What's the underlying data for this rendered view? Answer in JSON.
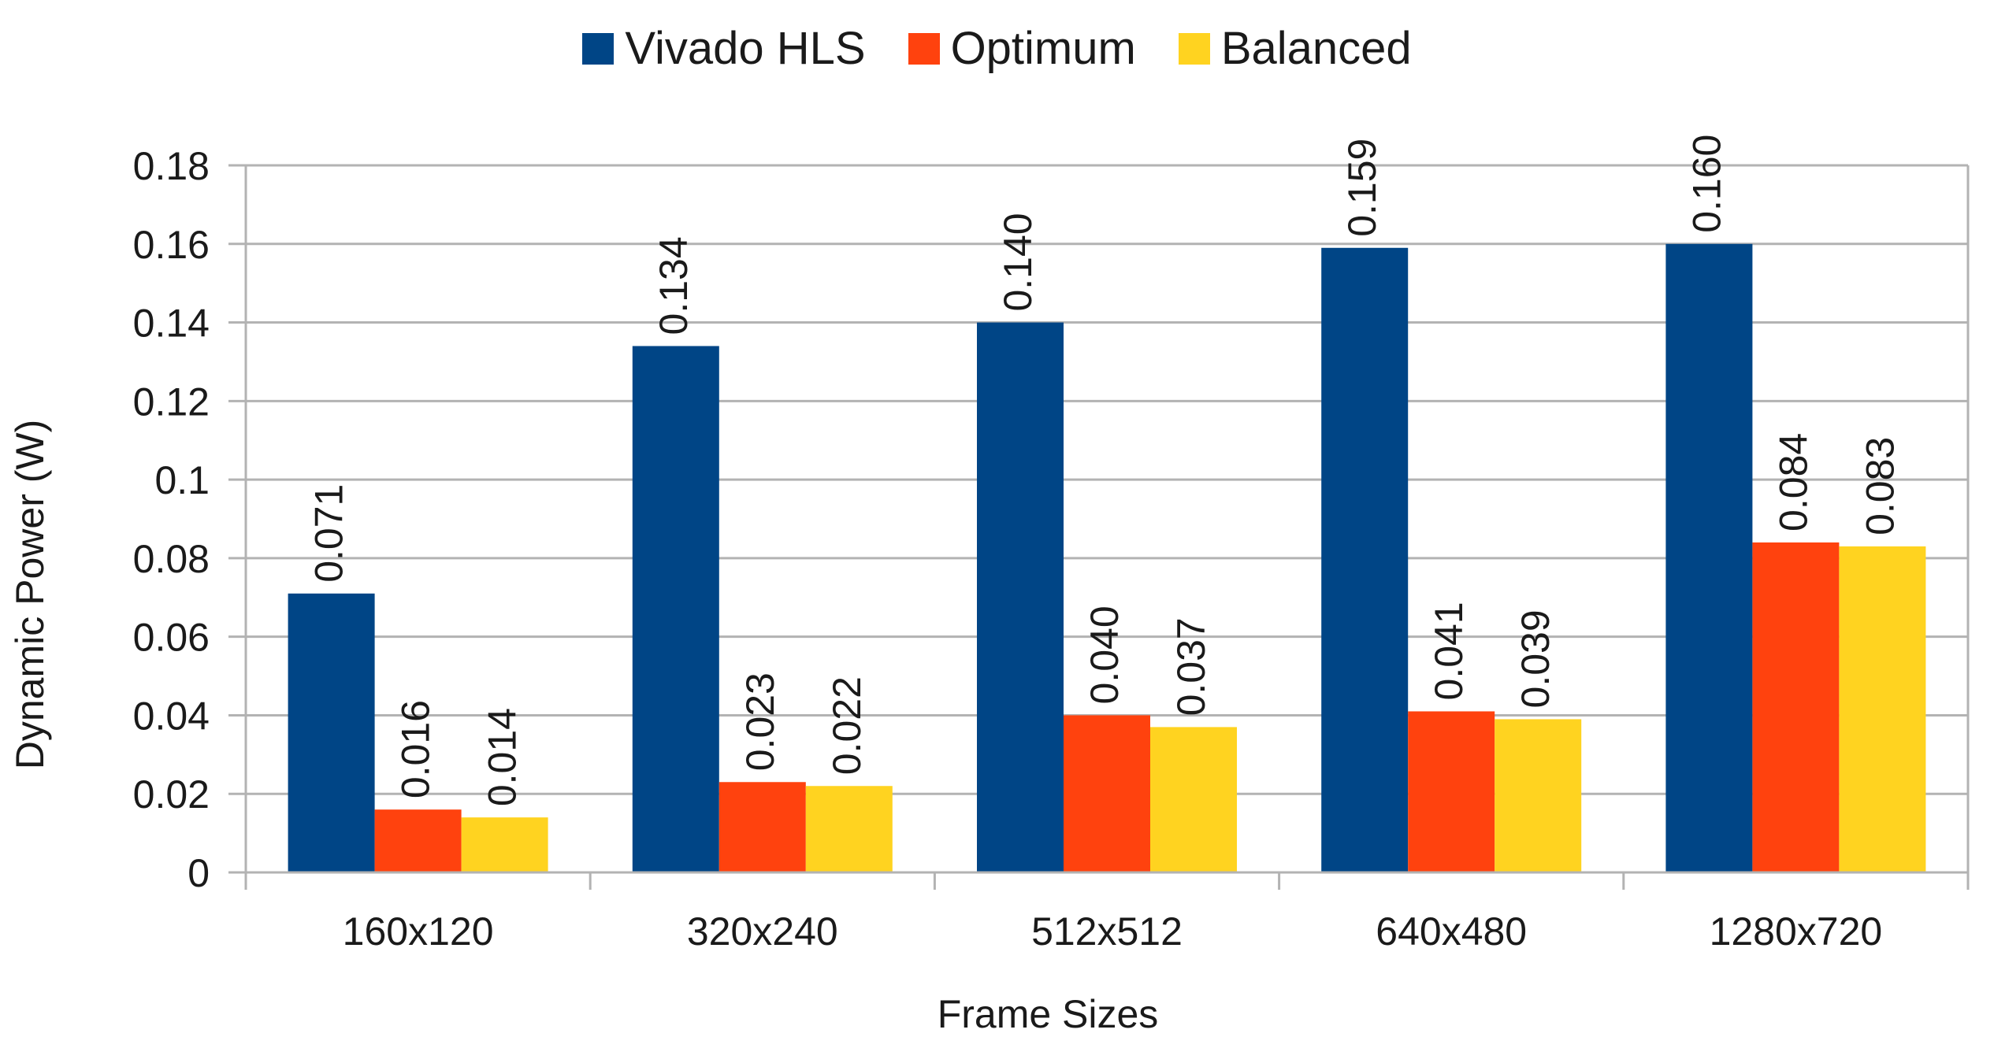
{
  "chart_data": {
    "type": "bar",
    "title": "",
    "xlabel": "Frame Sizes",
    "ylabel": "Dynamic Power (W)",
    "ylim": [
      0,
      0.18
    ],
    "yticks": [
      0,
      0.02,
      0.04,
      0.06,
      0.08,
      0.1,
      0.12,
      0.14,
      0.16,
      0.18
    ],
    "ytick_labels": [
      "0",
      "0.02",
      "0.04",
      "0.06",
      "0.08",
      "0.1",
      "0.12",
      "0.14",
      "0.16",
      "0.18"
    ],
    "grid": true,
    "legend_position": "top-center",
    "categories": [
      "160x120",
      "320x240",
      "512x512",
      "640x480",
      "1280x720"
    ],
    "series": [
      {
        "name": "Vivado HLS",
        "color": "#004586",
        "values": [
          0.071,
          0.134,
          0.14,
          0.159,
          0.16
        ],
        "labels": [
          "0.071",
          "0.134",
          "0.140",
          "0.159",
          "0.160"
        ]
      },
      {
        "name": "Optimum",
        "color": "#ff420e",
        "values": [
          0.016,
          0.023,
          0.04,
          0.041,
          0.084
        ],
        "labels": [
          "0.016",
          "0.023",
          "0.040",
          "0.041",
          "0.084"
        ]
      },
      {
        "name": "Balanced",
        "color": "#ffd320",
        "values": [
          0.014,
          0.022,
          0.037,
          0.039,
          0.083
        ],
        "labels": [
          "0.014",
          "0.022",
          "0.037",
          "0.039",
          "0.083"
        ]
      }
    ]
  }
}
